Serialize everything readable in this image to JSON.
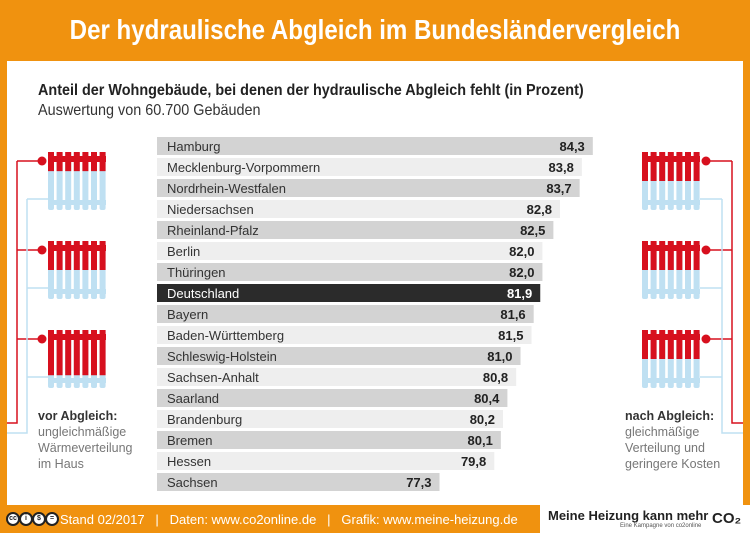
{
  "title": "Der hydraulische Abgleich im Bundesländervergleich",
  "chart_data": {
    "type": "bar",
    "orientation": "horizontal",
    "title": "Anteil der Wohngebäude, bei denen der hydraulische Abgleich fehlt (in Prozent)",
    "subtitle": "Auswertung von 60.700 Gebäuden",
    "categories": [
      "Hamburg",
      "Mecklenburg-Vorpommern",
      "Nordrhein-Westfalen",
      "Niedersachsen",
      "Rheinland-Pfalz",
      "Berlin",
      "Thüringen",
      "Deutschland",
      "Bayern",
      "Baden-Württemberg",
      "Schleswig-Holstein",
      "Sachsen-Anhalt",
      "Saarland",
      "Brandenburg",
      "Bremen",
      "Hessen",
      "Sachsen"
    ],
    "values": [
      84.3,
      83.8,
      83.7,
      82.8,
      82.5,
      82.0,
      82.0,
      81.9,
      81.6,
      81.5,
      81.0,
      80.8,
      80.4,
      80.2,
      80.1,
      79.8,
      77.3
    ],
    "value_labels": [
      "84,3",
      "83,8",
      "83,7",
      "82,8",
      "82,5",
      "82,0",
      "82,0",
      "81,9",
      "81,6",
      "81,5",
      "81,0",
      "80,8",
      "80,4",
      "80,2",
      "80,1",
      "79,8",
      "77,3"
    ],
    "highlight": "Deutschland",
    "colors": {
      "bar_dark": "#d3d3d3",
      "bar_light": "#eeeeee",
      "highlight": "#2b2b2b"
    }
  },
  "left_caption": {
    "head": "vor Abgleich:",
    "lines": [
      "ungleichmäßige",
      "Wärmeverteilung",
      "im Haus"
    ]
  },
  "right_caption": {
    "head": "nach Abgleich:",
    "lines": [
      "gleichmäßige",
      "Verteilung und",
      "geringere Kosten"
    ]
  },
  "radiators": {
    "left_hot_fraction": [
      0.33,
      0.5,
      0.78
    ],
    "right_hot_fraction": [
      0.5,
      0.5,
      0.5
    ],
    "hot": "#d7101e",
    "cold": "#bfe0f2"
  },
  "footer": {
    "license_icons": [
      "cc",
      "by",
      "nc",
      "nd"
    ],
    "text": "Stand 02/2017   |   Daten: www.co2online.de   |   Grafik: www.meine-heizung.de",
    "logo": "Meine Heizung kann mehr",
    "logo_tagline": "Eine Kampagne von co2online",
    "logo_mark": "CO₂"
  },
  "colors": {
    "brand": "#f0920f"
  }
}
